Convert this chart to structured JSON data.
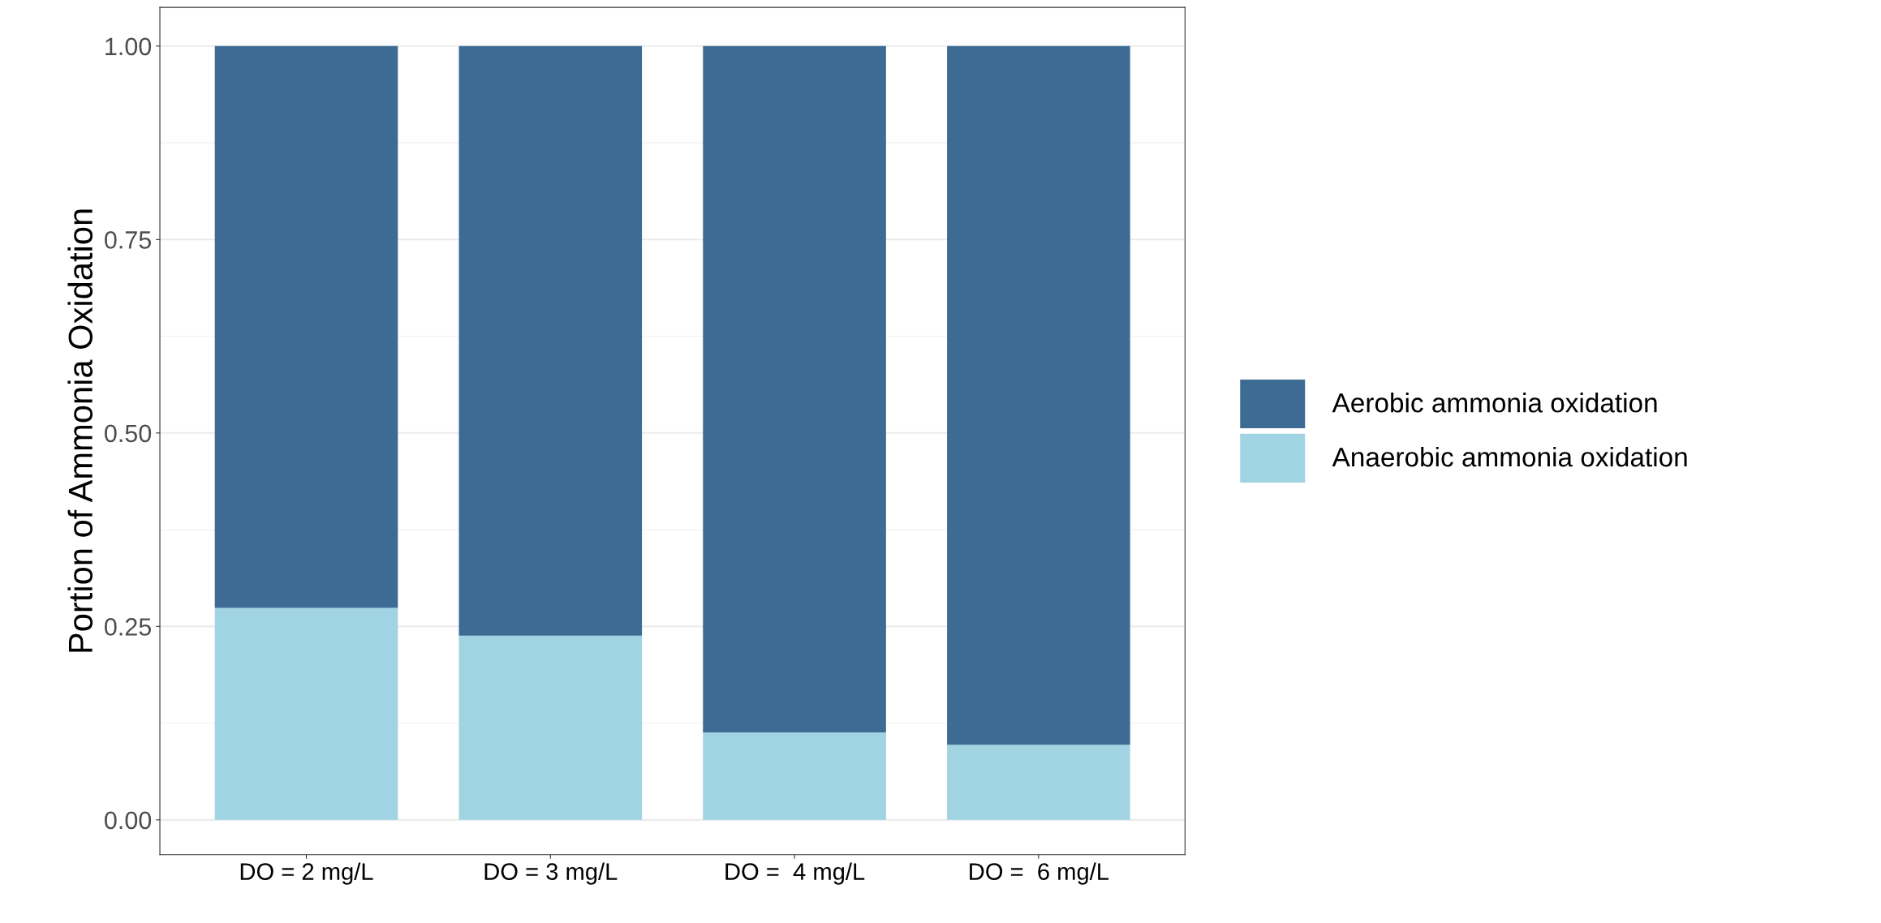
{
  "chart_data": {
    "type": "bar",
    "stacked": true,
    "ylabel": "Portion of Ammonia Oxidation",
    "categories": [
      "DO = 2 mg/L",
      "DO = 3 mg/L",
      "DO =  4 mg/L",
      "DO =  6 mg/L"
    ],
    "series": [
      {
        "name": "Anaerobic ammonia oxidation",
        "color": "#a0d4e2",
        "values": [
          0.274,
          0.238,
          0.113,
          0.097
        ]
      },
      {
        "name": "Aerobic ammonia oxidation",
        "color": "#3d6b94",
        "values": [
          0.726,
          0.762,
          0.887,
          0.903
        ]
      }
    ],
    "ylim": [
      -0.045,
      1.05
    ],
    "yticks": [
      {
        "value": 0,
        "label": "0.00"
      },
      {
        "value": 0.25,
        "label": "0.25"
      },
      {
        "value": 0.5,
        "label": "0.50"
      },
      {
        "value": 0.75,
        "label": "0.75"
      },
      {
        "value": 1,
        "label": "1.00"
      }
    ],
    "grid": "y",
    "legend": "right"
  }
}
